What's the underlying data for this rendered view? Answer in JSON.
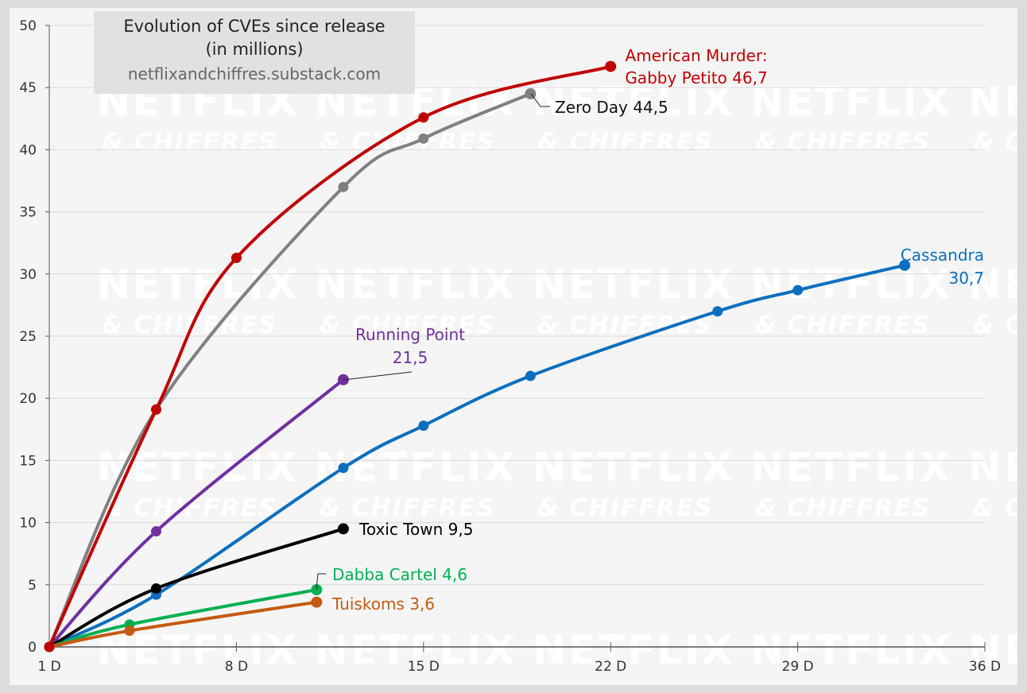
{
  "chart_data": {
    "type": "line",
    "title": "Evolution of CVEs since release\n(in millions)",
    "title_lines": [
      "Evolution of CVEs since release",
      "(in millions)"
    ],
    "subtitle": "netflixandchiffres.substack.com",
    "watermark": [
      "NETFLIX",
      "& CHIFFRES"
    ],
    "xlabel": "",
    "ylabel": "",
    "xlim": [
      1,
      36
    ],
    "ylim": [
      0,
      50
    ],
    "x_ticks": [
      1,
      8,
      15,
      22,
      29,
      36
    ],
    "x_tick_labels": [
      "1 D",
      "8 D",
      "15 D",
      "22 D",
      "29 D",
      "36 D"
    ],
    "y_ticks": [
      0,
      5,
      10,
      15,
      20,
      25,
      30,
      35,
      40,
      45,
      50
    ],
    "y_tick_labels": [
      "0",
      "5",
      "10",
      "15",
      "20",
      "25",
      "30",
      "35",
      "40",
      "45",
      "50"
    ],
    "grid": "horizontal",
    "series": [
      {
        "name": "American Murder: Gabby Petito",
        "label_lines": [
          "American Murder:",
          "Gabby Petito 46,7"
        ],
        "color": "#c00000",
        "points": [
          [
            1,
            0
          ],
          [
            5,
            19.1
          ],
          [
            8,
            31.3
          ],
          [
            15,
            42.6
          ],
          [
            22,
            46.7
          ]
        ]
      },
      {
        "name": "Zero Day",
        "label_lines": [
          "Zero Day 44,5"
        ],
        "color": "#808080",
        "points": [
          [
            1,
            0
          ],
          [
            5,
            19.1
          ],
          [
            12,
            37
          ],
          [
            15,
            40.9
          ],
          [
            19,
            44.5
          ]
        ]
      },
      {
        "name": "Cassandra",
        "label_lines": [
          "Cassandra",
          "30,7"
        ],
        "color": "#0b6fbf",
        "points": [
          [
            1,
            0
          ],
          [
            5,
            4.2
          ],
          [
            12,
            14.4
          ],
          [
            15,
            17.8
          ],
          [
            19,
            21.8
          ],
          [
            26,
            27
          ],
          [
            29,
            28.7
          ],
          [
            33,
            30.7
          ]
        ]
      },
      {
        "name": "Running Point",
        "label_lines": [
          "Running Point",
          "21,5"
        ],
        "color": "#7030a0",
        "points": [
          [
            1,
            0
          ],
          [
            5,
            9.3
          ],
          [
            12,
            21.5
          ]
        ]
      },
      {
        "name": "Toxic Town",
        "label_lines": [
          "Toxic Town 9,5"
        ],
        "color": "#000000",
        "points": [
          [
            1,
            0
          ],
          [
            5,
            4.7
          ],
          [
            12,
            9.5
          ]
        ]
      },
      {
        "name": "Dabba Cartel",
        "label_lines": [
          "Dabba Cartel 4,6"
        ],
        "color": "#00b050",
        "points": [
          [
            1,
            0
          ],
          [
            4,
            1.8
          ],
          [
            11,
            4.6
          ]
        ]
      },
      {
        "name": "Tuiskoms",
        "label_lines": [
          "Tuiskoms 3,6"
        ],
        "color": "#c55a11",
        "points": [
          [
            1,
            0
          ],
          [
            4,
            1.3
          ],
          [
            11,
            3.6
          ]
        ]
      }
    ]
  }
}
